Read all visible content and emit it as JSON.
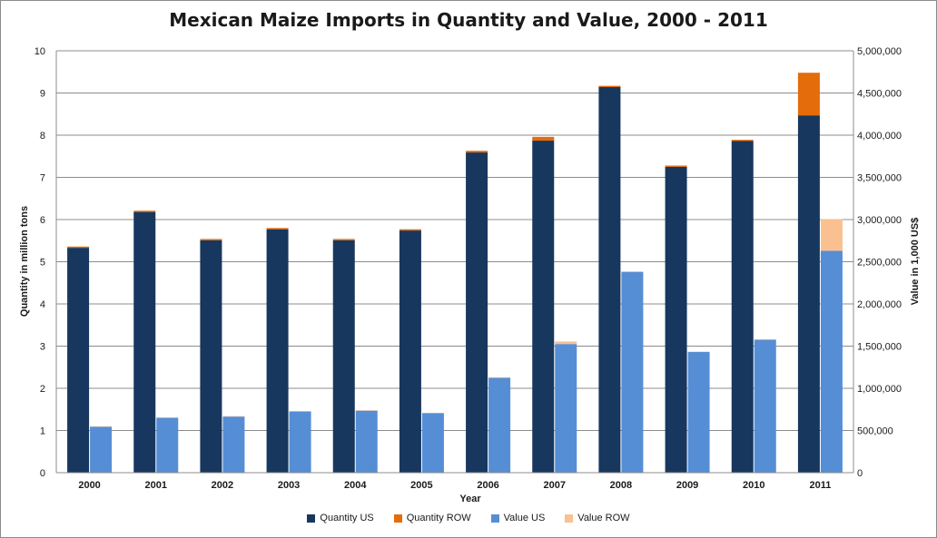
{
  "chart_data": {
    "type": "bar",
    "title": "Mexican Maize Imports in Quantity and Value, 2000 - 2011",
    "xlabel": "Year",
    "ylabel_left": "Quantity in million tons",
    "ylabel_right": "Value in 1,000 US$",
    "categories": [
      "2000",
      "2001",
      "2002",
      "2003",
      "2004",
      "2005",
      "2006",
      "2007",
      "2008",
      "2009",
      "2010",
      "2011"
    ],
    "ylim_left": [
      0,
      10
    ],
    "yticks_left": [
      "0",
      "1",
      "2",
      "3",
      "4",
      "5",
      "6",
      "7",
      "8",
      "9",
      "10"
    ],
    "ylim_right": [
      0,
      5000000
    ],
    "yticks_right": [
      "0",
      "500,000",
      "1,000,000",
      "1,500,000",
      "2,000,000",
      "2,500,000",
      "3,000,000",
      "3,500,000",
      "4,000,000",
      "4,500,000",
      "5,000,000"
    ],
    "grid": true,
    "legend_position": "bottom",
    "series": [
      {
        "name": "Quantity US",
        "axis": "left",
        "stack": "quantity",
        "color": "#17375e",
        "values": [
          5.33,
          6.18,
          5.51,
          5.77,
          5.51,
          5.74,
          7.59,
          7.87,
          9.14,
          7.25,
          7.86,
          8.47
        ]
      },
      {
        "name": "Quantity ROW",
        "axis": "left",
        "stack": "quantity",
        "color": "#e46c0a",
        "values": [
          0.03,
          0.03,
          0.03,
          0.03,
          0.03,
          0.03,
          0.04,
          0.09,
          0.03,
          0.03,
          0.03,
          1.01
        ]
      },
      {
        "name": "Value US",
        "axis": "right",
        "stack": "value",
        "color": "#558ed5",
        "values": [
          545000,
          650000,
          665000,
          725000,
          735000,
          705000,
          1125000,
          1525000,
          2380000,
          1430000,
          1575000,
          2630000
        ]
      },
      {
        "name": "Value ROW",
        "axis": "right",
        "stack": "value",
        "color": "#fac090",
        "values": [
          5000,
          5000,
          5000,
          5000,
          5000,
          5000,
          5000,
          30000,
          5000,
          5000,
          5000,
          375000
        ]
      }
    ]
  }
}
